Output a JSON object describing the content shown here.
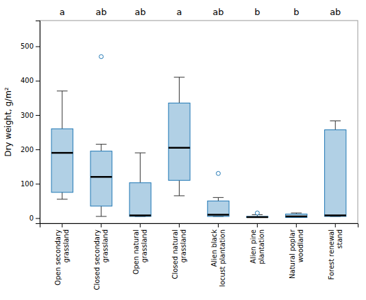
{
  "chart_data": {
    "type": "box",
    "categories": [
      "Open secondary\ngrassland",
      "Closed secondary\ngrassland",
      "Open natural\ngrassland",
      "Closed natural\ngrassland",
      "Alien black\nlocust plantation",
      "Alien pine\nplantation",
      "Natural poplar\nwoodland",
      "Forest renewal\nstand"
    ],
    "boxes": [
      {
        "q1": 75,
        "median": 190,
        "q3": 260,
        "whislo": 55,
        "whishi": 370,
        "fliers": []
      },
      {
        "q1": 35,
        "median": 120,
        "q3": 195,
        "whislo": 5,
        "whishi": 215,
        "fliers": [
          470
        ]
      },
      {
        "q1": 5,
        "median": 8,
        "q3": 103,
        "whislo": 5,
        "whishi": 190,
        "fliers": []
      },
      {
        "q1": 110,
        "median": 205,
        "q3": 335,
        "whislo": 65,
        "whishi": 410,
        "fliers": []
      },
      {
        "q1": 5,
        "median": 10,
        "q3": 50,
        "whislo": 5,
        "whishi": 60,
        "fliers": [
          130
        ]
      },
      {
        "q1": 2,
        "median": 3,
        "q3": 5,
        "whislo": 2,
        "whishi": 10,
        "fliers": [
          15
        ]
      },
      {
        "q1": 2,
        "median": 5,
        "q3": 12,
        "whislo": 2,
        "whishi": 15,
        "fliers": []
      },
      {
        "q1": 5,
        "median": 8,
        "q3": 257,
        "whislo": 5,
        "whishi": 283,
        "fliers": []
      }
    ],
    "annotations": [
      "a",
      "ab",
      "ab",
      "a",
      "ab",
      "b",
      "b",
      "ab"
    ],
    "ylabel": "Dry weight, g/m²",
    "ylim": [
      -15,
      575
    ],
    "yticks": [
      0,
      100,
      200,
      300,
      400,
      500
    ],
    "grid": false
  }
}
